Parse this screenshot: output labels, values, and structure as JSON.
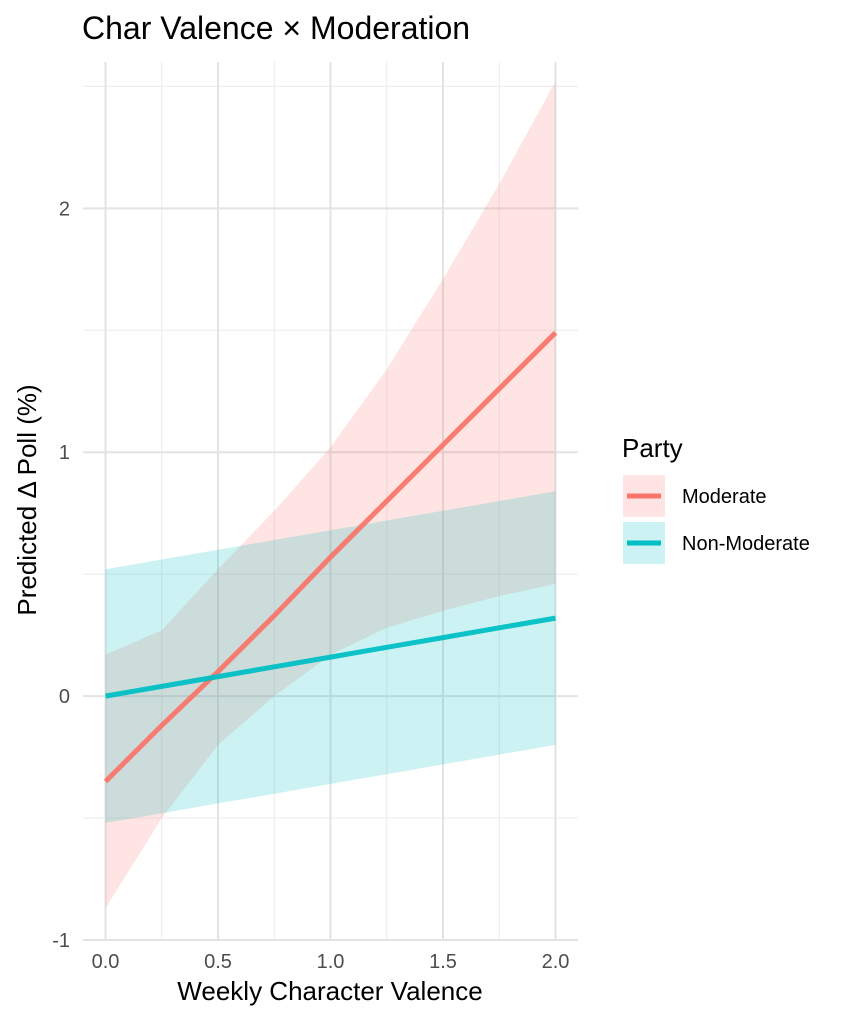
{
  "chart_data": {
    "type": "line",
    "title": "Char Valence × Moderation",
    "xlabel": "Weekly Character Valence",
    "ylabel": "Predicted Δ Poll (%)",
    "xlim": [
      -0.1,
      2.1
    ],
    "ylim": [
      -1.0,
      2.6
    ],
    "x_ticks": [
      0.0,
      0.5,
      1.0,
      1.5,
      2.0
    ],
    "x_tick_labels": [
      "0.0",
      "0.5",
      "1.0",
      "1.5",
      "2.0"
    ],
    "y_ticks": [
      -1,
      0,
      1,
      2
    ],
    "y_tick_labels": [
      "-1",
      "0",
      "1",
      "2"
    ],
    "grid": true,
    "legend": {
      "title": "Party",
      "position": "right"
    },
    "x": [
      0.0,
      0.25,
      0.5,
      0.75,
      1.0,
      1.25,
      1.5,
      1.75,
      2.0
    ],
    "series": [
      {
        "name": "Moderate",
        "color": "#F8766D",
        "values": [
          -0.35,
          -0.12,
          0.1,
          0.33,
          0.57,
          0.8,
          1.03,
          1.26,
          1.49
        ],
        "lower": [
          -0.87,
          -0.5,
          -0.2,
          0.0,
          0.17,
          0.28,
          0.35,
          0.41,
          0.46
        ],
        "upper": [
          0.17,
          0.27,
          0.52,
          0.76,
          1.02,
          1.34,
          1.71,
          2.1,
          2.52
        ]
      },
      {
        "name": "Non-Moderate",
        "color": "#00BFC4",
        "values": [
          0.0,
          0.04,
          0.08,
          0.12,
          0.16,
          0.2,
          0.24,
          0.28,
          0.32
        ],
        "lower": [
          -0.52,
          -0.48,
          -0.44,
          -0.4,
          -0.36,
          -0.32,
          -0.28,
          -0.24,
          -0.2
        ],
        "upper": [
          0.52,
          0.56,
          0.6,
          0.64,
          0.68,
          0.72,
          0.76,
          0.8,
          0.84
        ]
      }
    ]
  }
}
